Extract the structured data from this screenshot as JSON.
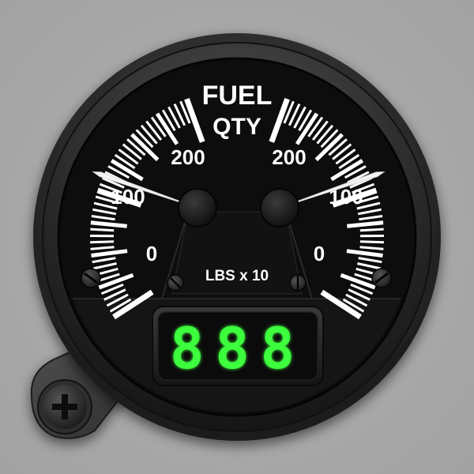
{
  "gauge": {
    "title_line1": "FUEL",
    "title_line2": "QTY",
    "units": "LBS x 10",
    "left_scale": {
      "labels": [
        "0",
        "100",
        "200"
      ]
    },
    "right_scale": {
      "labels": [
        "0",
        "100",
        "200"
      ]
    },
    "left_needle_value": 100,
    "right_needle_value": 100,
    "display_value": "888",
    "colors": {
      "dial": "#0d0d0d",
      "markings": "#ffffff",
      "lcd_on": "#33ff33",
      "lcd_bg": "#0c0c0c",
      "bezel": "#2a2a2a",
      "background": "#aaaaaa"
    }
  }
}
